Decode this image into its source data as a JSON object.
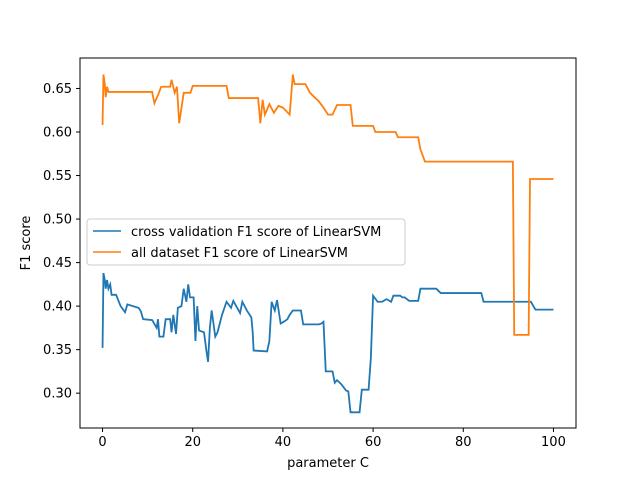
{
  "chart_data": {
    "type": "line",
    "title": "",
    "xlabel": "parameter C",
    "ylabel": "F1 score",
    "xlim": [
      -5,
      105
    ],
    "ylim": [
      0.26,
      0.685
    ],
    "xticks": [
      0,
      20,
      40,
      60,
      80,
      100
    ],
    "xtick_labels": [
      "0",
      "20",
      "40",
      "60",
      "80",
      "100"
    ],
    "yticks": [
      0.3,
      0.35,
      0.4,
      0.45,
      0.5,
      0.55,
      0.6,
      0.65
    ],
    "ytick_labels": [
      "0.30",
      "0.35",
      "0.40",
      "0.45",
      "0.50",
      "0.55",
      "0.60",
      "0.65"
    ],
    "grid": false,
    "legend_position": "center-left",
    "series": [
      {
        "name": "cross validation F1 score of LinearSVM",
        "color": "#1f77b4",
        "points": [
          [
            0.0,
            0.352
          ],
          [
            0.2,
            0.438
          ],
          [
            0.5,
            0.43
          ],
          [
            0.7,
            0.42
          ],
          [
            1.0,
            0.43
          ],
          [
            1.3,
            0.42
          ],
          [
            1.7,
            0.425
          ],
          [
            2.0,
            0.413
          ],
          [
            3.0,
            0.413
          ],
          [
            4.0,
            0.4
          ],
          [
            5.0,
            0.393
          ],
          [
            5.5,
            0.402
          ],
          [
            8.0,
            0.398
          ],
          [
            8.5,
            0.394
          ],
          [
            9.0,
            0.385
          ],
          [
            11.0,
            0.384
          ],
          [
            12.0,
            0.375
          ],
          [
            12.3,
            0.385
          ],
          [
            12.6,
            0.365
          ],
          [
            13.5,
            0.365
          ],
          [
            14.0,
            0.385
          ],
          [
            15.0,
            0.385
          ],
          [
            15.3,
            0.37
          ],
          [
            15.7,
            0.39
          ],
          [
            16.3,
            0.368
          ],
          [
            16.7,
            0.398
          ],
          [
            17.5,
            0.4
          ],
          [
            18.0,
            0.42
          ],
          [
            18.6,
            0.405
          ],
          [
            19.0,
            0.425
          ],
          [
            19.4,
            0.41
          ],
          [
            20.2,
            0.41
          ],
          [
            20.6,
            0.36
          ],
          [
            21.0,
            0.4
          ],
          [
            21.4,
            0.372
          ],
          [
            22.5,
            0.37
          ],
          [
            23.0,
            0.35
          ],
          [
            23.4,
            0.336
          ],
          [
            23.8,
            0.375
          ],
          [
            24.2,
            0.395
          ],
          [
            25.0,
            0.365
          ],
          [
            25.5,
            0.37
          ],
          [
            26.5,
            0.39
          ],
          [
            27.5,
            0.405
          ],
          [
            28.5,
            0.398
          ],
          [
            29.0,
            0.406
          ],
          [
            30.5,
            0.392
          ],
          [
            31.0,
            0.405
          ],
          [
            32.0,
            0.395
          ],
          [
            33.0,
            0.387
          ],
          [
            33.3,
            0.37
          ],
          [
            33.5,
            0.349
          ],
          [
            36.5,
            0.348
          ],
          [
            37.0,
            0.36
          ],
          [
            37.5,
            0.405
          ],
          [
            38.2,
            0.395
          ],
          [
            38.7,
            0.407
          ],
          [
            39.5,
            0.38
          ],
          [
            40.5,
            0.383
          ],
          [
            41.0,
            0.385
          ],
          [
            41.5,
            0.39
          ],
          [
            42.2,
            0.395
          ],
          [
            44.0,
            0.395
          ],
          [
            44.5,
            0.379
          ],
          [
            48.0,
            0.379
          ],
          [
            48.5,
            0.38
          ],
          [
            49.0,
            0.382
          ],
          [
            49.5,
            0.325
          ],
          [
            51.0,
            0.325
          ],
          [
            51.5,
            0.312
          ],
          [
            52.0,
            0.315
          ],
          [
            53.0,
            0.31
          ],
          [
            54.0,
            0.303
          ],
          [
            54.5,
            0.302
          ],
          [
            55.0,
            0.278
          ],
          [
            57.0,
            0.278
          ],
          [
            57.5,
            0.304
          ],
          [
            59.0,
            0.304
          ],
          [
            59.5,
            0.34
          ],
          [
            60.0,
            0.412
          ],
          [
            61.0,
            0.405
          ],
          [
            62.0,
            0.405
          ],
          [
            63.0,
            0.408
          ],
          [
            64.0,
            0.405
          ],
          [
            64.5,
            0.412
          ],
          [
            66.0,
            0.412
          ],
          [
            66.5,
            0.41
          ],
          [
            67.0,
            0.41
          ],
          [
            68.0,
            0.406
          ],
          [
            70.0,
            0.406
          ],
          [
            70.5,
            0.42
          ],
          [
            74.0,
            0.42
          ],
          [
            75.0,
            0.415
          ],
          [
            84.0,
            0.415
          ],
          [
            84.5,
            0.405
          ],
          [
            91.0,
            0.405
          ],
          [
            95.0,
            0.405
          ],
          [
            96.0,
            0.396
          ],
          [
            100.0,
            0.396
          ]
        ]
      },
      {
        "name": "all dataset F1 score of LinearSVM",
        "color": "#ff7f0e",
        "points": [
          [
            0.0,
            0.608
          ],
          [
            0.2,
            0.666
          ],
          [
            0.5,
            0.655
          ],
          [
            0.7,
            0.64
          ],
          [
            1.0,
            0.652
          ],
          [
            1.3,
            0.646
          ],
          [
            11.0,
            0.646
          ],
          [
            11.5,
            0.633
          ],
          [
            12.5,
            0.645
          ],
          [
            13.0,
            0.652
          ],
          [
            15.0,
            0.652
          ],
          [
            15.3,
            0.66
          ],
          [
            16.0,
            0.645
          ],
          [
            16.5,
            0.652
          ],
          [
            17.0,
            0.61
          ],
          [
            18.0,
            0.645
          ],
          [
            19.5,
            0.645
          ],
          [
            20.0,
            0.653
          ],
          [
            27.5,
            0.653
          ],
          [
            28.0,
            0.639
          ],
          [
            34.5,
            0.639
          ],
          [
            35.0,
            0.61
          ],
          [
            35.5,
            0.637
          ],
          [
            36.0,
            0.62
          ],
          [
            37.0,
            0.632
          ],
          [
            38.0,
            0.622
          ],
          [
            39.0,
            0.63
          ],
          [
            40.0,
            0.628
          ],
          [
            41.5,
            0.62
          ],
          [
            42.2,
            0.666
          ],
          [
            42.6,
            0.655
          ],
          [
            45.0,
            0.655
          ],
          [
            45.5,
            0.65
          ],
          [
            46.0,
            0.645
          ],
          [
            47.0,
            0.64
          ],
          [
            48.0,
            0.635
          ],
          [
            49.0,
            0.628
          ],
          [
            50.0,
            0.62
          ],
          [
            51.0,
            0.62
          ],
          [
            52.0,
            0.631
          ],
          [
            55.0,
            0.631
          ],
          [
            55.5,
            0.607
          ],
          [
            60.0,
            0.607
          ],
          [
            60.5,
            0.6
          ],
          [
            65.0,
            0.6
          ],
          [
            65.5,
            0.594
          ],
          [
            70.0,
            0.594
          ],
          [
            70.5,
            0.58
          ],
          [
            71.5,
            0.566
          ],
          [
            91.0,
            0.566
          ],
          [
            91.3,
            0.367
          ],
          [
            94.5,
            0.367
          ],
          [
            94.8,
            0.546
          ],
          [
            100.0,
            0.546
          ]
        ]
      }
    ]
  }
}
